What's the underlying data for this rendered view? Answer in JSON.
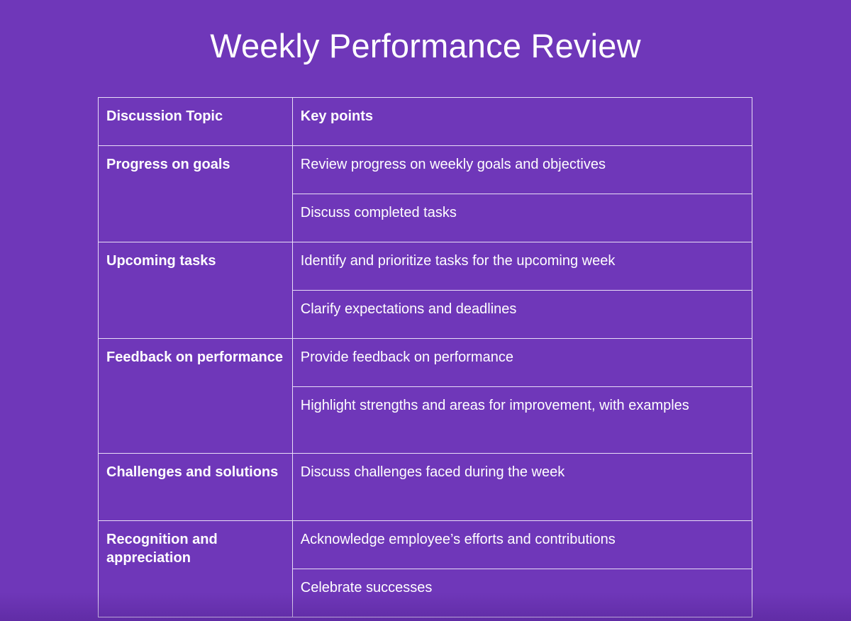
{
  "page": {
    "title": "Weekly Performance Review",
    "colors": {
      "background": "#6f37b9",
      "text": "#ffffff",
      "grid": "#e9def7"
    }
  },
  "table": {
    "headers": {
      "topic": "Discussion Topic",
      "points": "Key points"
    },
    "rows": [
      {
        "topic": "Progress on goals",
        "points": [
          "Review progress on weekly goals and objectives",
          "Discuss completed tasks"
        ]
      },
      {
        "topic": "Upcoming tasks",
        "points": [
          "Identify and prioritize tasks for the upcoming week",
          "Clarify expectations and deadlines"
        ]
      },
      {
        "topic": "Feedback on performance",
        "points": [
          "Provide feedback on performance",
          "Highlight strengths and areas for improvement, with examples"
        ]
      },
      {
        "topic": "Challenges and solutions",
        "points": [
          "Discuss challenges faced during the week"
        ]
      },
      {
        "topic": "Recognition and appreciation",
        "points": [
          "Acknowledge employee’s efforts and contributions",
          "Celebrate successes"
        ]
      }
    ]
  }
}
